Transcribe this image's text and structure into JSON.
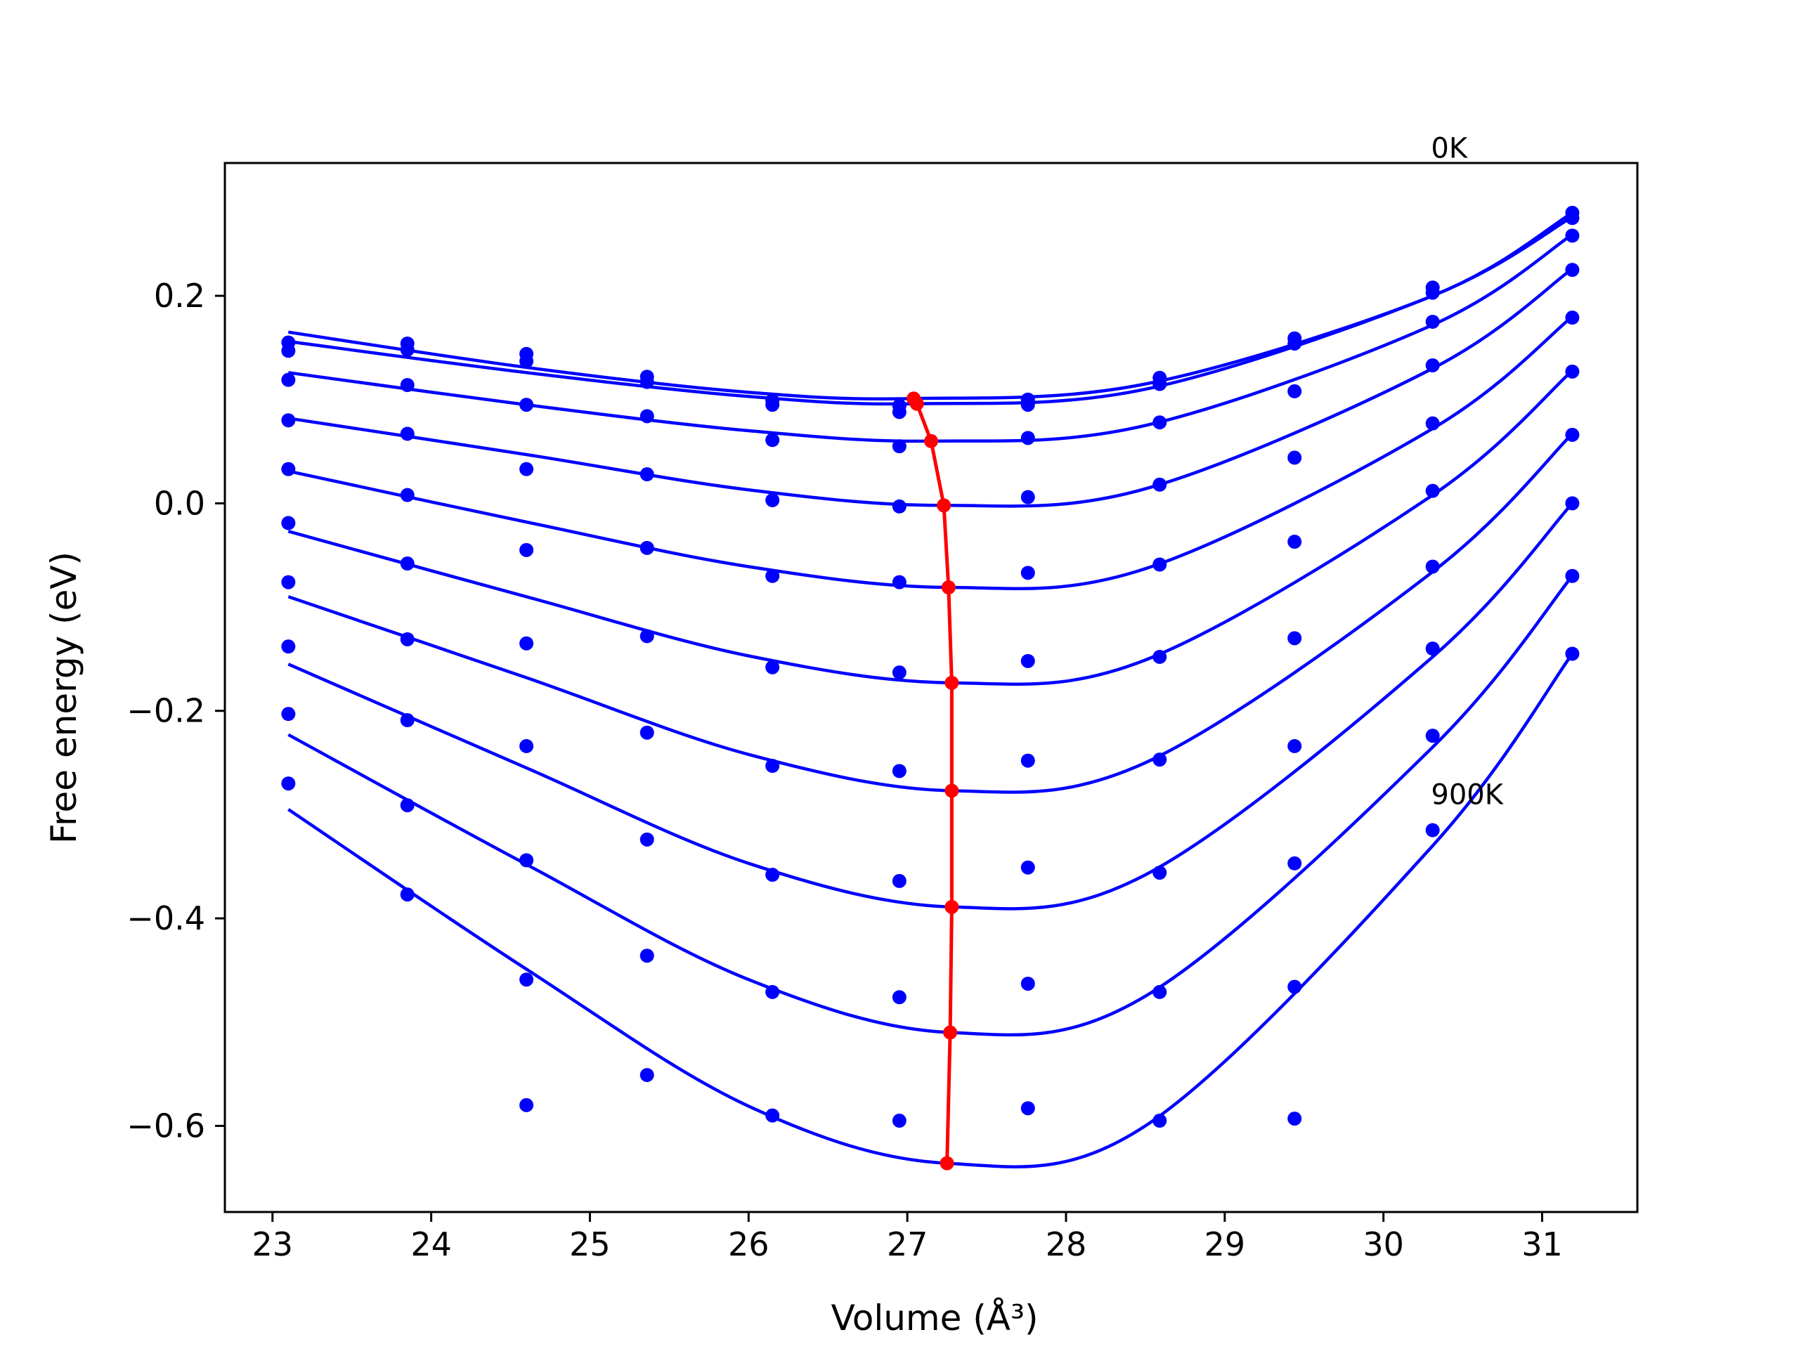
{
  "chart_data": {
    "type": "scatter",
    "xlabel": "Volume (Å³)",
    "ylabel": "Free energy (eV)",
    "xlim": [
      22.7,
      31.6
    ],
    "ylim": [
      -0.683,
      0.328
    ],
    "xticks": [
      23,
      24,
      25,
      26,
      27,
      28,
      29,
      30,
      31
    ],
    "yticks": [
      -0.6,
      -0.4,
      -0.2,
      0.0,
      0.2
    ],
    "xtick_labels": [
      "23",
      "24",
      "25",
      "26",
      "27",
      "28",
      "29",
      "30",
      "31"
    ],
    "ytick_labels": [
      "−0.6",
      "−0.4",
      "−0.2",
      "0.0",
      "0.2"
    ],
    "grid": false,
    "legend": "none",
    "colors": {
      "series": "#0000ff",
      "minima": "#ff0000"
    },
    "annotations": [
      {
        "text": "0K",
        "x": 30.3,
        "y": 0.333
      },
      {
        "text": "900K",
        "x": 30.3,
        "y": -0.29
      }
    ],
    "volumes": [
      23.1,
      23.85,
      24.6,
      25.36,
      26.15,
      26.95,
      27.76,
      28.59,
      29.44,
      30.31,
      31.19
    ],
    "series": [
      {
        "values": [
          0.155,
          0.154,
          0.144,
          0.122,
          0.099,
          0.094,
          0.1,
          0.121,
          0.159,
          0.208,
          0.28
        ],
        "fit_min": [
          27.04,
          0.101
        ]
      },
      {
        "values": [
          0.147,
          0.148,
          0.137,
          0.117,
          0.095,
          0.088,
          0.095,
          0.115,
          0.154,
          0.203,
          0.275
        ],
        "fit_min": [
          27.06,
          0.096
        ]
      },
      {
        "values": [
          0.119,
          0.114,
          0.095,
          0.084,
          0.061,
          0.055,
          0.063,
          0.078,
          0.108,
          0.175,
          0.258
        ],
        "fit_min": [
          27.15,
          0.06
        ]
      },
      {
        "values": [
          0.08,
          0.067,
          0.033,
          0.028,
          0.003,
          -0.003,
          0.006,
          0.018,
          0.044,
          0.133,
          0.225
        ],
        "fit_min": [
          27.23,
          -0.002
        ]
      },
      {
        "values": [
          0.033,
          0.008,
          -0.045,
          -0.043,
          -0.07,
          -0.076,
          -0.067,
          -0.059,
          -0.037,
          0.077,
          0.179
        ],
        "fit_min": [
          27.26,
          -0.081
        ]
      },
      {
        "values": [
          -0.019,
          -0.058,
          -0.135,
          -0.128,
          -0.158,
          -0.163,
          -0.152,
          -0.148,
          -0.13,
          0.012,
          0.127
        ],
        "fit_min": [
          27.28,
          -0.173
        ]
      },
      {
        "values": [
          -0.076,
          -0.131,
          -0.234,
          -0.221,
          -0.253,
          -0.258,
          -0.248,
          -0.247,
          -0.234,
          -0.061,
          0.066
        ],
        "fit_min": [
          27.28,
          -0.277
        ]
      },
      {
        "values": [
          -0.138,
          -0.209,
          -0.344,
          -0.324,
          -0.358,
          -0.364,
          -0.351,
          -0.356,
          -0.347,
          -0.14,
          0.0
        ],
        "fit_min": [
          27.28,
          -0.389
        ]
      },
      {
        "values": [
          -0.203,
          -0.291,
          -0.459,
          -0.436,
          -0.471,
          -0.476,
          -0.463,
          -0.471,
          -0.466,
          -0.224,
          -0.07
        ],
        "fit_min": [
          27.27,
          -0.51
        ]
      },
      {
        "values": [
          -0.27,
          -0.377,
          -0.58,
          -0.551,
          -0.59,
          -0.595,
          -0.583,
          -0.595,
          -0.593,
          -0.315,
          -0.145
        ],
        "fit_min": [
          27.25,
          -0.636
        ]
      }
    ],
    "fits": [
      {
        "x": [
          23.1,
          24.6,
          26.0,
          27.04,
          28.5,
          30.31,
          31.19
        ],
        "y": [
          0.165,
          0.131,
          0.107,
          0.101,
          0.115,
          0.2,
          0.28
        ]
      },
      {
        "x": [
          23.1,
          24.6,
          26.0,
          27.06,
          28.5,
          30.31,
          31.19
        ],
        "y": [
          0.156,
          0.126,
          0.103,
          0.096,
          0.11,
          0.2,
          0.276
        ]
      },
      {
        "x": [
          23.1,
          24.6,
          26.0,
          27.15,
          28.5,
          30.31,
          31.19
        ],
        "y": [
          0.126,
          0.095,
          0.07,
          0.06,
          0.075,
          0.172,
          0.259
        ]
      },
      {
        "x": [
          23.1,
          24.6,
          26.0,
          27.23,
          28.5,
          30.31,
          31.19
        ],
        "y": [
          0.082,
          0.047,
          0.013,
          -0.002,
          0.014,
          0.13,
          0.226
        ]
      },
      {
        "x": [
          23.1,
          24.6,
          26.0,
          27.26,
          28.5,
          30.31,
          31.19
        ],
        "y": [
          0.031,
          -0.018,
          -0.061,
          -0.081,
          -0.063,
          0.072,
          0.18
        ]
      },
      {
        "x": [
          23.1,
          24.6,
          26.0,
          27.28,
          28.5,
          30.31,
          31.19
        ],
        "y": [
          -0.027,
          -0.09,
          -0.147,
          -0.173,
          -0.151,
          0.008,
          0.128
        ]
      },
      {
        "x": [
          23.1,
          24.6,
          26.0,
          27.28,
          28.5,
          30.31,
          31.19
        ],
        "y": [
          -0.09,
          -0.168,
          -0.242,
          -0.277,
          -0.25,
          -0.066,
          0.067
        ]
      },
      {
        "x": [
          23.1,
          24.6,
          26.0,
          27.28,
          28.5,
          30.31,
          31.19
        ],
        "y": [
          -0.155,
          -0.255,
          -0.347,
          -0.389,
          -0.358,
          -0.148,
          0.0
        ]
      },
      {
        "x": [
          23.1,
          24.6,
          26.0,
          27.27,
          28.5,
          30.31,
          31.19
        ],
        "y": [
          -0.223,
          -0.348,
          -0.459,
          -0.51,
          -0.475,
          -0.235,
          -0.07
        ]
      },
      {
        "x": [
          23.1,
          24.6,
          26.0,
          27.25,
          28.5,
          30.31,
          31.19
        ],
        "y": [
          -0.295,
          -0.449,
          -0.581,
          -0.636,
          -0.6,
          -0.33,
          -0.145
        ]
      }
    ]
  }
}
